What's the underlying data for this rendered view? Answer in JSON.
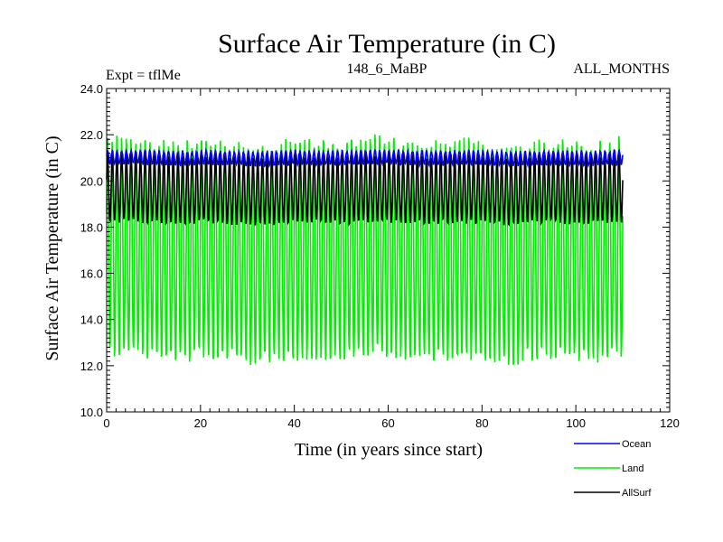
{
  "chart_data": {
    "type": "line",
    "title": "Surface Air Temperature (in C)",
    "subtitle_left": "Expt = tflMe",
    "subtitle_center": "148_6_MaBP",
    "subtitle_right": "ALL_MONTHS",
    "xlabel": "Time (in years since start)",
    "ylabel": "Surface Air Temperature (in C)",
    "xlim": [
      0,
      120
    ],
    "ylim": [
      10,
      24
    ],
    "x_ticks": [
      0,
      20,
      40,
      60,
      80,
      100,
      120
    ],
    "x_tick_labels": [
      "0",
      "20",
      "40",
      "60",
      "80",
      "100",
      "120"
    ],
    "y_ticks": [
      10,
      12,
      14,
      16,
      18,
      20,
      22,
      24
    ],
    "y_tick_labels": [
      "10.0",
      "12.0",
      "14.0",
      "16.0",
      "18.0",
      "20.0",
      "22.0",
      "24.0"
    ],
    "x_end": 110,
    "samples_per_year": 12,
    "grid": false,
    "legend_position": "bottom-right",
    "series": [
      {
        "name": "Land",
        "color": "#00ee00",
        "mean": 17.0,
        "amplitude": 4.6,
        "noise": 0.35,
        "min_approx": 11.9,
        "max_approx": 22.7
      },
      {
        "name": "AllSurf",
        "color": "#000000",
        "mean": 19.65,
        "amplitude": 1.45,
        "noise": 0.12,
        "min_approx": 18.2,
        "max_approx": 21.1
      },
      {
        "name": "Ocean",
        "color": "#0000ff",
        "mean": 21.0,
        "amplitude": 0.28,
        "noise": 0.06,
        "min_approx": 20.6,
        "max_approx": 21.5
      }
    ],
    "legend": [
      {
        "name": "Ocean",
        "color": "#0000ff"
      },
      {
        "name": "Land",
        "color": "#00ee00"
      },
      {
        "name": "AllSurf",
        "color": "#000000"
      }
    ]
  }
}
